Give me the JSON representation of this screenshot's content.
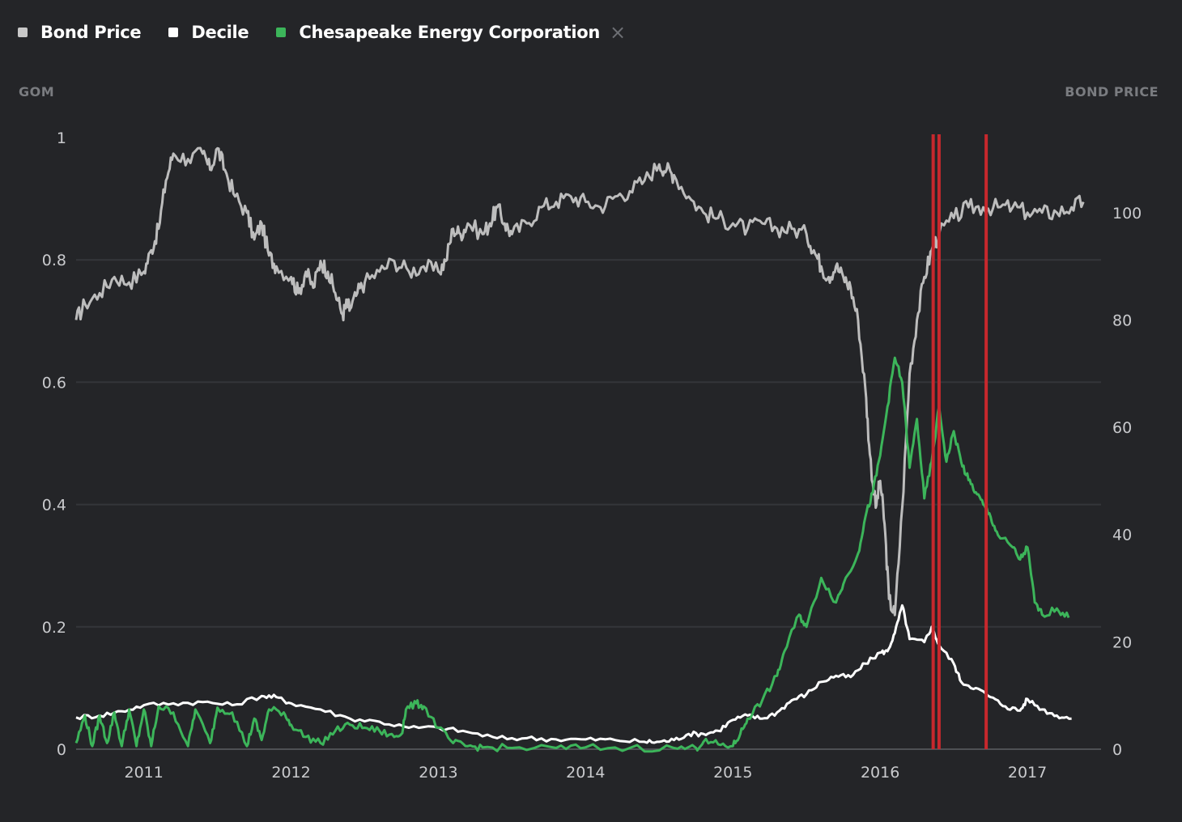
{
  "legend": {
    "items": [
      {
        "label": "Bond Price",
        "color": "#c8c8c8"
      },
      {
        "label": "Decile",
        "color": "#ffffff"
      },
      {
        "label": "Chesapeake Energy Corporation",
        "color": "#3cb55a"
      }
    ],
    "close_icon": "close-icon",
    "close_glyph": "×"
  },
  "axes": {
    "left_title": "GOM",
    "right_title": "BOND PRICE"
  },
  "chart_data": {
    "type": "line",
    "x_unit": "year (decimal)",
    "xlim": [
      2010.54,
      2017.5
    ],
    "x_ticks": [
      {
        "value": 2011,
        "label": "2011"
      },
      {
        "value": 2012,
        "label": "2012"
      },
      {
        "value": 2013,
        "label": "2013"
      },
      {
        "value": 2014,
        "label": "2014"
      },
      {
        "value": 2015,
        "label": "2015"
      },
      {
        "value": 2016,
        "label": "2016"
      },
      {
        "value": 2017,
        "label": "2017"
      }
    ],
    "y_left": {
      "title": "GOM",
      "ylim": [
        0,
        1
      ],
      "ticks": [
        {
          "value": 0,
          "label": "0"
        },
        {
          "value": 0.2,
          "label": "0.2"
        },
        {
          "value": 0.4,
          "label": "0.4"
        },
        {
          "value": 0.6,
          "label": "0.6"
        },
        {
          "value": 0.8,
          "label": "0.8"
        },
        {
          "value": 1,
          "label": "1"
        }
      ]
    },
    "y_right": {
      "title": "BOND PRICE",
      "ylim": [
        0,
        114
      ],
      "ticks": [
        {
          "value": 0,
          "label": "0"
        },
        {
          "value": 20,
          "label": "20"
        },
        {
          "value": 40,
          "label": "40"
        },
        {
          "value": 60,
          "label": "60"
        },
        {
          "value": 80,
          "label": "80"
        },
        {
          "value": 100,
          "label": "100"
        }
      ]
    },
    "gridlines": [
      0.2,
      0.4,
      0.6,
      0.8
    ],
    "event_markers": [
      2016.36,
      2016.4,
      2016.72
    ],
    "series": [
      {
        "name": "Bond Price",
        "axis": "right",
        "color": "#bdbdbd",
        "points": [
          [
            2010.54,
            80
          ],
          [
            2010.6,
            83
          ],
          [
            2010.7,
            85
          ],
          [
            2010.8,
            88
          ],
          [
            2010.9,
            87
          ],
          [
            2011.0,
            89
          ],
          [
            2011.05,
            93
          ],
          [
            2011.1,
            97
          ],
          [
            2011.15,
            106
          ],
          [
            2011.2,
            111
          ],
          [
            2011.3,
            110
          ],
          [
            2011.4,
            111
          ],
          [
            2011.45,
            108
          ],
          [
            2011.5,
            112
          ],
          [
            2011.55,
            108
          ],
          [
            2011.62,
            103
          ],
          [
            2011.7,
            100
          ],
          [
            2011.75,
            95
          ],
          [
            2011.8,
            98
          ],
          [
            2011.85,
            92
          ],
          [
            2011.9,
            90
          ],
          [
            2012.0,
            88
          ],
          [
            2012.05,
            85
          ],
          [
            2012.1,
            89
          ],
          [
            2012.15,
            86
          ],
          [
            2012.2,
            91
          ],
          [
            2012.25,
            89
          ],
          [
            2012.3,
            85
          ],
          [
            2012.35,
            81
          ],
          [
            2012.38,
            83
          ],
          [
            2012.4,
            82
          ],
          [
            2012.45,
            85
          ],
          [
            2012.5,
            87
          ],
          [
            2012.6,
            89
          ],
          [
            2012.7,
            91
          ],
          [
            2012.8,
            89
          ],
          [
            2012.9,
            90
          ],
          [
            2013.0,
            89
          ],
          [
            2013.05,
            91
          ],
          [
            2013.1,
            97
          ],
          [
            2013.15,
            96
          ],
          [
            2013.2,
            98
          ],
          [
            2013.3,
            96
          ],
          [
            2013.35,
            98
          ],
          [
            2013.4,
            101
          ],
          [
            2013.45,
            98
          ],
          [
            2013.5,
            96
          ],
          [
            2013.6,
            98
          ],
          [
            2013.7,
            101
          ],
          [
            2013.8,
            102
          ],
          [
            2013.9,
            103
          ],
          [
            2014.0,
            102
          ],
          [
            2014.1,
            101
          ],
          [
            2014.2,
            103
          ],
          [
            2014.3,
            104
          ],
          [
            2014.4,
            106
          ],
          [
            2014.5,
            109
          ],
          [
            2014.55,
            108
          ],
          [
            2014.6,
            107
          ],
          [
            2014.7,
            103
          ],
          [
            2014.8,
            100
          ],
          [
            2014.9,
            99
          ],
          [
            2015.0,
            98
          ],
          [
            2015.1,
            97
          ],
          [
            2015.2,
            98
          ],
          [
            2015.3,
            97
          ],
          [
            2015.4,
            97
          ],
          [
            2015.5,
            96
          ],
          [
            2015.55,
            93
          ],
          [
            2015.6,
            90
          ],
          [
            2015.65,
            88
          ],
          [
            2015.7,
            90
          ],
          [
            2015.75,
            88
          ],
          [
            2015.8,
            86
          ],
          [
            2015.85,
            80
          ],
          [
            2015.9,
            67
          ],
          [
            2015.93,
            55
          ],
          [
            2015.97,
            45
          ],
          [
            2016.0,
            50
          ],
          [
            2016.03,
            42
          ],
          [
            2016.06,
            28
          ],
          [
            2016.1,
            25
          ],
          [
            2016.15,
            45
          ],
          [
            2016.2,
            70
          ],
          [
            2016.25,
            80
          ],
          [
            2016.3,
            88
          ],
          [
            2016.35,
            93
          ],
          [
            2016.4,
            96
          ],
          [
            2016.5,
            99
          ],
          [
            2016.6,
            101
          ],
          [
            2016.7,
            101
          ],
          [
            2016.8,
            101
          ],
          [
            2016.9,
            101
          ],
          [
            2017.0,
            100
          ],
          [
            2017.1,
            100
          ],
          [
            2017.2,
            100
          ],
          [
            2017.3,
            101
          ],
          [
            2017.38,
            102
          ]
        ]
      },
      {
        "name": "Decile",
        "axis": "left",
        "color": "#ffffff",
        "points": [
          [
            2010.54,
            0.052
          ],
          [
            2010.7,
            0.055
          ],
          [
            2010.85,
            0.062
          ],
          [
            2011.0,
            0.072
          ],
          [
            2011.2,
            0.075
          ],
          [
            2011.4,
            0.077
          ],
          [
            2011.6,
            0.072
          ],
          [
            2011.8,
            0.087
          ],
          [
            2011.9,
            0.085
          ],
          [
            2012.0,
            0.075
          ],
          [
            2012.2,
            0.065
          ],
          [
            2012.4,
            0.05
          ],
          [
            2012.6,
            0.045
          ],
          [
            2012.8,
            0.035
          ],
          [
            2013.0,
            0.035
          ],
          [
            2013.2,
            0.028
          ],
          [
            2013.4,
            0.018
          ],
          [
            2013.6,
            0.018
          ],
          [
            2013.8,
            0.016
          ],
          [
            2014.0,
            0.016
          ],
          [
            2014.2,
            0.015
          ],
          [
            2014.4,
            0.012
          ],
          [
            2014.5,
            0.012
          ],
          [
            2014.6,
            0.015
          ],
          [
            2014.7,
            0.025
          ],
          [
            2014.8,
            0.025
          ],
          [
            2014.9,
            0.03
          ],
          [
            2015.0,
            0.048
          ],
          [
            2015.1,
            0.055
          ],
          [
            2015.2,
            0.05
          ],
          [
            2015.3,
            0.06
          ],
          [
            2015.4,
            0.08
          ],
          [
            2015.5,
            0.09
          ],
          [
            2015.6,
            0.11
          ],
          [
            2015.7,
            0.12
          ],
          [
            2015.8,
            0.118
          ],
          [
            2015.9,
            0.14
          ],
          [
            2016.0,
            0.158
          ],
          [
            2016.05,
            0.16
          ],
          [
            2016.1,
            0.19
          ],
          [
            2016.15,
            0.235
          ],
          [
            2016.2,
            0.18
          ],
          [
            2016.3,
            0.175
          ],
          [
            2016.35,
            0.2
          ],
          [
            2016.4,
            0.17
          ],
          [
            2016.5,
            0.14
          ],
          [
            2016.55,
            0.11
          ],
          [
            2016.65,
            0.1
          ],
          [
            2016.75,
            0.085
          ],
          [
            2016.85,
            0.07
          ],
          [
            2016.95,
            0.063
          ],
          [
            2017.0,
            0.082
          ],
          [
            2017.1,
            0.065
          ],
          [
            2017.2,
            0.055
          ],
          [
            2017.3,
            0.05
          ]
        ]
      },
      {
        "name": "Chesapeake Energy Corporation",
        "axis": "left",
        "color": "#3cb55a",
        "points": [
          [
            2010.54,
            0.01
          ],
          [
            2010.6,
            0.055
          ],
          [
            2010.65,
            0.005
          ],
          [
            2010.7,
            0.055
          ],
          [
            2010.75,
            0.01
          ],
          [
            2010.8,
            0.06
          ],
          [
            2010.85,
            0.005
          ],
          [
            2010.9,
            0.065
          ],
          [
            2010.95,
            0.005
          ],
          [
            2011.0,
            0.065
          ],
          [
            2011.05,
            0.005
          ],
          [
            2011.1,
            0.07
          ],
          [
            2011.2,
            0.06
          ],
          [
            2011.3,
            0.005
          ],
          [
            2011.35,
            0.065
          ],
          [
            2011.45,
            0.01
          ],
          [
            2011.5,
            0.068
          ],
          [
            2011.6,
            0.06
          ],
          [
            2011.7,
            0.005
          ],
          [
            2011.75,
            0.05
          ],
          [
            2011.8,
            0.015
          ],
          [
            2011.85,
            0.065
          ],
          [
            2011.95,
            0.06
          ],
          [
            2012.0,
            0.04
          ],
          [
            2012.1,
            0.02
          ],
          [
            2012.2,
            0.01
          ],
          [
            2012.3,
            0.03
          ],
          [
            2012.4,
            0.04
          ],
          [
            2012.5,
            0.035
          ],
          [
            2012.6,
            0.03
          ],
          [
            2012.7,
            0.02
          ],
          [
            2012.75,
            0.025
          ],
          [
            2012.78,
            0.065
          ],
          [
            2012.85,
            0.075
          ],
          [
            2012.9,
            0.07
          ],
          [
            2013.0,
            0.035
          ],
          [
            2013.1,
            0.01
          ],
          [
            2013.2,
            0.005
          ],
          [
            2013.3,
            0.003
          ],
          [
            2013.5,
            0.002
          ],
          [
            2013.8,
            0.002
          ],
          [
            2014.0,
            0.003
          ],
          [
            2014.3,
            0.002
          ],
          [
            2014.6,
            0.002
          ],
          [
            2014.75,
            0.002
          ],
          [
            2014.8,
            0.012
          ],
          [
            2014.9,
            0.008
          ],
          [
            2015.0,
            0.005
          ],
          [
            2015.05,
            0.025
          ],
          [
            2015.1,
            0.05
          ],
          [
            2015.2,
            0.08
          ],
          [
            2015.3,
            0.12
          ],
          [
            2015.35,
            0.16
          ],
          [
            2015.45,
            0.22
          ],
          [
            2015.5,
            0.2
          ],
          [
            2015.6,
            0.28
          ],
          [
            2015.7,
            0.24
          ],
          [
            2015.75,
            0.27
          ],
          [
            2015.85,
            0.32
          ],
          [
            2015.9,
            0.38
          ],
          [
            2015.95,
            0.42
          ],
          [
            2016.0,
            0.48
          ],
          [
            2016.05,
            0.56
          ],
          [
            2016.1,
            0.64
          ],
          [
            2016.15,
            0.6
          ],
          [
            2016.2,
            0.46
          ],
          [
            2016.25,
            0.54
          ],
          [
            2016.3,
            0.41
          ],
          [
            2016.35,
            0.47
          ],
          [
            2016.4,
            0.56
          ],
          [
            2016.45,
            0.47
          ],
          [
            2016.5,
            0.52
          ],
          [
            2016.55,
            0.47
          ],
          [
            2016.6,
            0.44
          ],
          [
            2016.65,
            0.42
          ],
          [
            2016.7,
            0.4
          ],
          [
            2016.75,
            0.38
          ],
          [
            2016.8,
            0.35
          ],
          [
            2016.9,
            0.33
          ],
          [
            2016.95,
            0.31
          ],
          [
            2017.0,
            0.33
          ],
          [
            2017.05,
            0.24
          ],
          [
            2017.1,
            0.22
          ],
          [
            2017.2,
            0.23
          ],
          [
            2017.28,
            0.215
          ]
        ]
      }
    ]
  }
}
